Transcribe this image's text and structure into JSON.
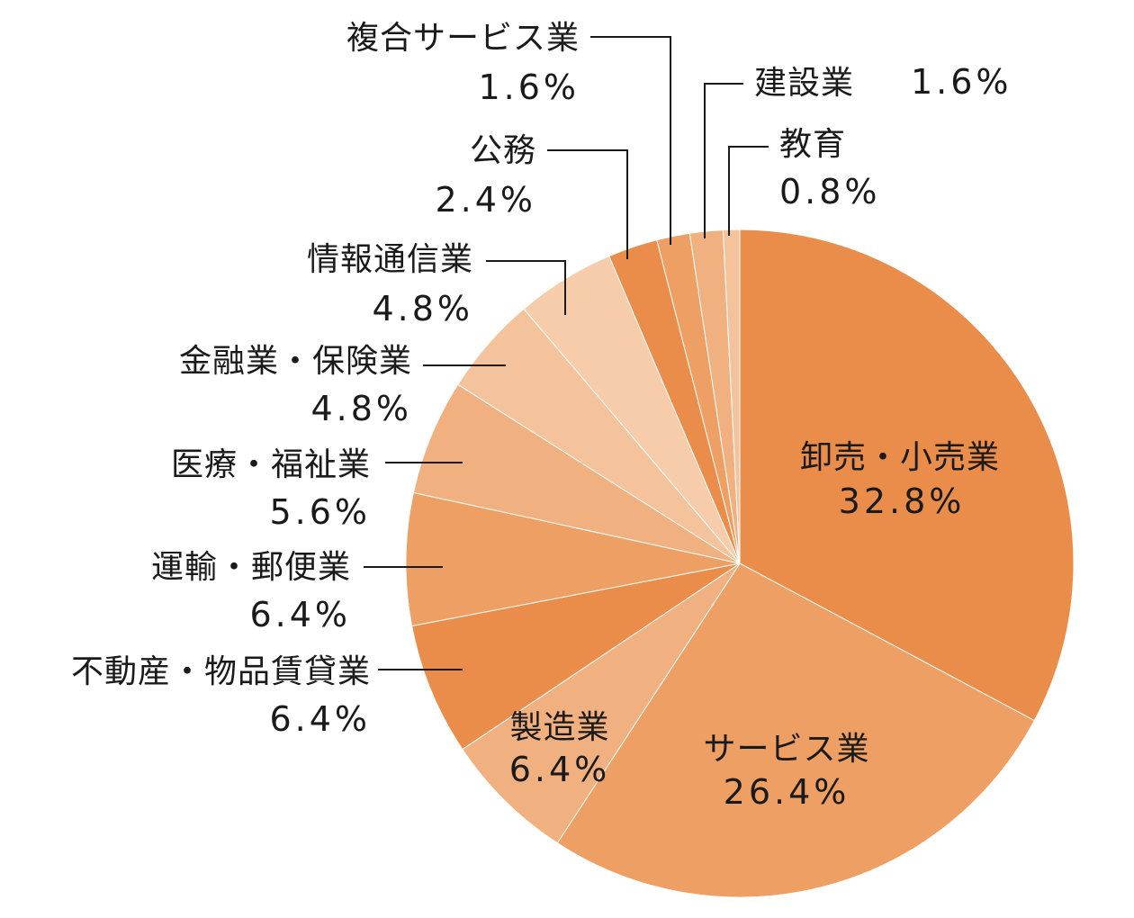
{
  "chart_data": {
    "type": "pie",
    "unit": "%",
    "start": "12 o'clock",
    "direction": "clockwise",
    "slices": [
      {
        "label": "卸売・小売業",
        "value_text": "32.8%",
        "value": 32.8,
        "color": "#ea8d4a",
        "label_placement": "inside"
      },
      {
        "label": "サービス業",
        "value_text": "26.4%",
        "value": 26.4,
        "color": "#ee9f63",
        "label_placement": "inside"
      },
      {
        "label": "製造業",
        "value_text": "6.4%",
        "value": 6.4,
        "color": "#f1b07f",
        "label_placement": "inside"
      },
      {
        "label": "不動産・物品賃貸業",
        "value_text": "6.4%",
        "value": 6.4,
        "color": "#ea8d4a",
        "label_placement": "outside-left"
      },
      {
        "label": "運輸・郵便業",
        "value_text": "6.4%",
        "value": 6.4,
        "color": "#ee9f63",
        "label_placement": "outside-left"
      },
      {
        "label": "医療・福祉業",
        "value_text": "5.6%",
        "value": 5.6,
        "color": "#f1b07f",
        "label_placement": "outside-left"
      },
      {
        "label": "金融業・保険業",
        "value_text": "4.8%",
        "value": 4.8,
        "color": "#f4c39b",
        "label_placement": "outside-left"
      },
      {
        "label": "情報通信業",
        "value_text": "4.8%",
        "value": 4.8,
        "color": "#f7ccab",
        "label_placement": "outside-left"
      },
      {
        "label": "公務",
        "value_text": "2.4%",
        "value": 2.4,
        "color": "#ea8d4a",
        "label_placement": "outside-top"
      },
      {
        "label": "複合サービス業",
        "value_text": "1.6%",
        "value": 1.6,
        "color": "#ee9f63",
        "label_placement": "outside-top"
      },
      {
        "label": "建設業",
        "value_text": "1.6%",
        "value": 1.6,
        "color": "#f1b07f",
        "label_placement": "outside-top-right"
      },
      {
        "label": "教育",
        "value_text": "0.8%",
        "value": 0.8,
        "color": "#f4c39b",
        "label_placement": "outside-top-right"
      }
    ]
  }
}
